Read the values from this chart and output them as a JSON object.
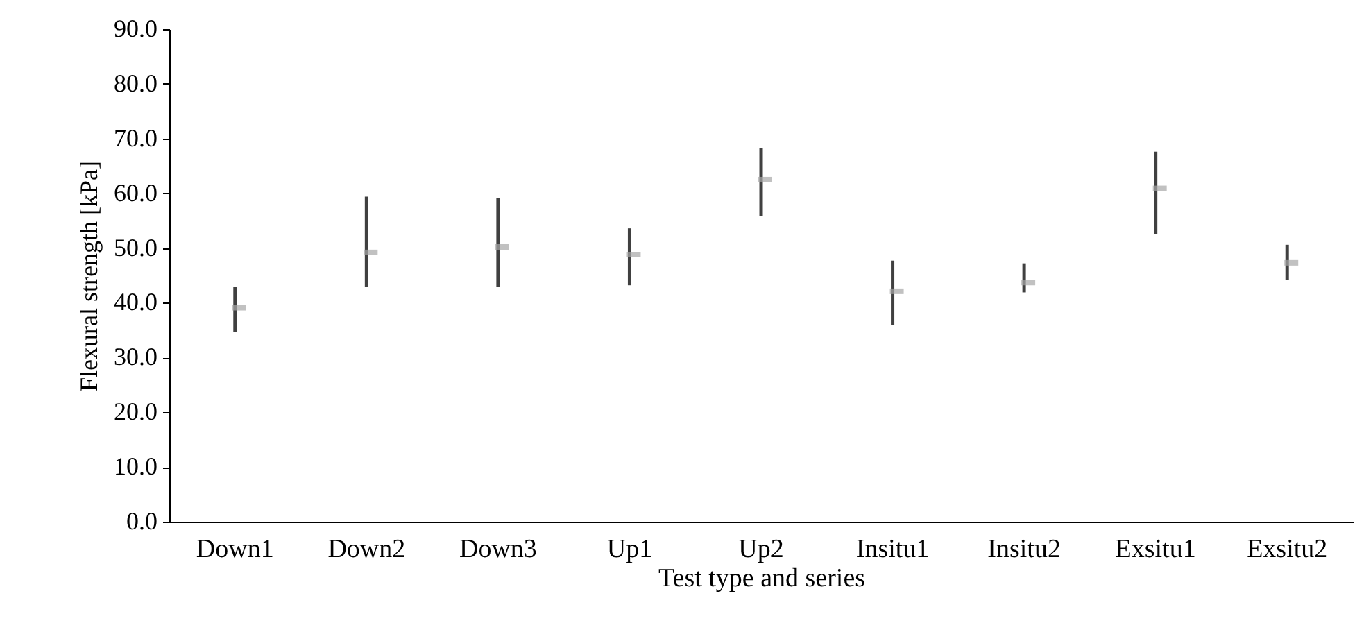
{
  "chart_data": {
    "type": "scatter",
    "xlabel": "Test type and series",
    "ylabel": "Flexural strength [kPa]",
    "categories": [
      "Down1",
      "Down2",
      "Down3",
      "Up1",
      "Up2",
      "Insitu1",
      "Insitu2",
      "Exsitu1",
      "Exsitu2"
    ],
    "series": [
      {
        "color": "#a6a6a6",
        "values": [
          39.1,
          49.2,
          50.2,
          48.8,
          62.5,
          42.1,
          43.7,
          60.9,
          47.3
        ],
        "errors": [
          [
            34.7,
            42.9
          ],
          [
            42.9,
            59.4
          ],
          [
            42.9,
            59.2
          ],
          [
            43.2,
            53.6
          ],
          [
            55.9,
            68.3
          ],
          [
            36.0,
            47.7
          ],
          [
            41.9,
            47.2
          ],
          [
            52.6,
            67.6
          ],
          [
            44.2,
            50.6
          ]
        ]
      }
    ],
    "ylim": [
      0,
      90
    ],
    "yticks": [
      {
        "value": 0,
        "label": "0.0"
      },
      {
        "value": 10,
        "label": "10.0"
      },
      {
        "value": 20,
        "label": "20.0"
      },
      {
        "value": 30,
        "label": "30.0"
      },
      {
        "value": 40,
        "label": "40.0"
      },
      {
        "value": 50,
        "label": "50.0"
      },
      {
        "value": 60,
        "label": "60.0"
      },
      {
        "value": 70,
        "label": "70.0"
      },
      {
        "value": 80,
        "label": "80.0"
      },
      {
        "value": 90,
        "label": "90.0"
      }
    ],
    "grid": false
  }
}
